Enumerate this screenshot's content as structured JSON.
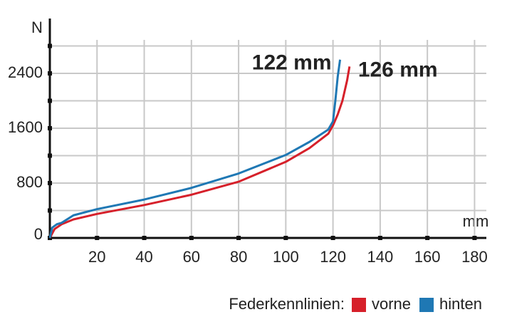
{
  "chart_data": {
    "type": "line",
    "x_label": "mm",
    "y_label": "N",
    "xlim": [
      0,
      185
    ],
    "ylim": [
      0,
      3200
    ],
    "xticks": [
      20,
      40,
      60,
      80,
      100,
      120,
      140,
      160,
      180
    ],
    "yticks": [
      0,
      800,
      1600,
      2400
    ],
    "minor_yticks": [
      400,
      1200,
      2000,
      2800
    ],
    "grid": true,
    "legend_title": "Federkennlinien:",
    "series": [
      {
        "name": "vorne",
        "color": "#d6202a",
        "x": [
          0,
          2,
          5,
          10,
          20,
          40,
          60,
          80,
          100,
          110,
          118,
          120,
          122,
          124,
          126,
          127
        ],
        "values": [
          0,
          130,
          200,
          270,
          350,
          480,
          630,
          820,
          1110,
          1310,
          1520,
          1640,
          1800,
          2000,
          2300,
          2500
        ]
      },
      {
        "name": "hinten",
        "color": "#1f78b4",
        "x": [
          0,
          1,
          3,
          5,
          10,
          20,
          40,
          60,
          80,
          100,
          110,
          118,
          120,
          121,
          122,
          123
        ],
        "values": [
          0,
          150,
          200,
          220,
          330,
          420,
          560,
          730,
          940,
          1210,
          1400,
          1580,
          1700,
          2000,
          2350,
          2600
        ]
      }
    ],
    "annotations": [
      {
        "text": "122 mm",
        "series": 1
      },
      {
        "text": "126 mm",
        "series": 0
      }
    ]
  }
}
